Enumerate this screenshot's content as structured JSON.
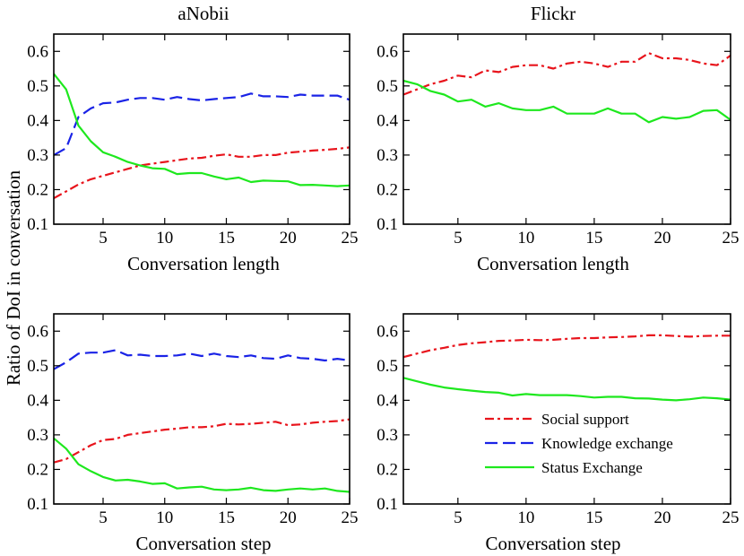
{
  "figure": {
    "ylabel": "Ratio of DoI in conversation",
    "legend": {
      "placement": "lower-right of bottom-right panel",
      "entries": [
        "Social support",
        "Knowledge exchange",
        "Status Exchange"
      ]
    },
    "colors": {
      "social_support": "#e8141c",
      "knowledge_exchange": "#1a23e6",
      "status_exchange": "#1ee81e"
    }
  },
  "chart_data": [
    {
      "type": "line",
      "title": "aNobii",
      "xlabel": "Conversation length",
      "ylabel": "Ratio of DoI in conversation",
      "xlim": [
        1,
        25
      ],
      "ylim": [
        0.1,
        0.65
      ],
      "xticks": [
        5,
        10,
        15,
        20,
        25
      ],
      "yticks": [
        0.1,
        0.2,
        0.3,
        0.4,
        0.5,
        0.6
      ],
      "x": [
        1,
        2,
        3,
        4,
        5,
        6,
        7,
        8,
        9,
        10,
        11,
        12,
        13,
        14,
        15,
        16,
        17,
        18,
        19,
        20,
        21,
        22,
        23,
        24,
        25
      ],
      "series": [
        {
          "name": "Social support",
          "key": "social_support",
          "style": "dashdot",
          "values": [
            0.175,
            0.195,
            0.215,
            0.23,
            0.24,
            0.25,
            0.26,
            0.27,
            0.275,
            0.28,
            0.285,
            0.29,
            0.292,
            0.298,
            0.302,
            0.295,
            0.295,
            0.3,
            0.3,
            0.307,
            0.31,
            0.313,
            0.315,
            0.318,
            0.322
          ]
        },
        {
          "name": "Knowledge exchange",
          "key": "knowledge_exchange",
          "style": "dashed",
          "values": [
            0.3,
            0.32,
            0.41,
            0.435,
            0.45,
            0.452,
            0.46,
            0.465,
            0.465,
            0.46,
            0.468,
            0.462,
            0.458,
            0.462,
            0.465,
            0.468,
            0.478,
            0.47,
            0.47,
            0.468,
            0.475,
            0.472,
            0.472,
            0.472,
            0.46
          ]
        },
        {
          "name": "Status Exchange",
          "key": "status_exchange",
          "style": "solid",
          "values": [
            0.535,
            0.49,
            0.385,
            0.34,
            0.308,
            0.295,
            0.28,
            0.27,
            0.262,
            0.26,
            0.245,
            0.248,
            0.248,
            0.238,
            0.23,
            0.235,
            0.222,
            0.226,
            0.225,
            0.224,
            0.213,
            0.214,
            0.212,
            0.21,
            0.212
          ]
        }
      ]
    },
    {
      "type": "line",
      "title": "Flickr",
      "xlabel": "Conversation length",
      "ylabel": "",
      "xlim": [
        1,
        25
      ],
      "ylim": [
        0.1,
        0.65
      ],
      "xticks": [
        5,
        10,
        15,
        20,
        25
      ],
      "yticks": [
        0.1,
        0.2,
        0.3,
        0.4,
        0.5,
        0.6
      ],
      "x": [
        1,
        2,
        3,
        4,
        5,
        6,
        7,
        8,
        9,
        10,
        11,
        12,
        13,
        14,
        15,
        16,
        17,
        18,
        19,
        20,
        21,
        22,
        23,
        24,
        25
      ],
      "series": [
        {
          "name": "Social support",
          "key": "social_support",
          "style": "dashdot",
          "values": [
            0.475,
            0.49,
            0.505,
            0.515,
            0.53,
            0.525,
            0.545,
            0.54,
            0.555,
            0.56,
            0.56,
            0.55,
            0.565,
            0.57,
            0.565,
            0.555,
            0.57,
            0.57,
            0.595,
            0.58,
            0.58,
            0.575,
            0.565,
            0.56,
            0.588
          ]
        },
        {
          "name": "Status Exchange",
          "key": "status_exchange",
          "style": "solid",
          "values": [
            0.515,
            0.505,
            0.485,
            0.475,
            0.455,
            0.46,
            0.44,
            0.45,
            0.435,
            0.43,
            0.43,
            0.44,
            0.42,
            0.42,
            0.42,
            0.435,
            0.42,
            0.42,
            0.395,
            0.41,
            0.405,
            0.41,
            0.428,
            0.43,
            0.402
          ]
        }
      ]
    },
    {
      "type": "line",
      "title": "",
      "xlabel": "Conversation step",
      "ylabel": "Ratio of DoI in conversation",
      "xlim": [
        1,
        25
      ],
      "ylim": [
        0.1,
        0.65
      ],
      "xticks": [
        5,
        10,
        15,
        20,
        25
      ],
      "yticks": [
        0.1,
        0.2,
        0.3,
        0.4,
        0.5,
        0.6
      ],
      "x": [
        1,
        2,
        3,
        4,
        5,
        6,
        7,
        8,
        9,
        10,
        11,
        12,
        13,
        14,
        15,
        16,
        17,
        18,
        19,
        20,
        21,
        22,
        23,
        24,
        25
      ],
      "series": [
        {
          "name": "Social support",
          "key": "social_support",
          "style": "dashdot",
          "values": [
            0.22,
            0.23,
            0.25,
            0.27,
            0.285,
            0.288,
            0.3,
            0.305,
            0.31,
            0.315,
            0.318,
            0.322,
            0.322,
            0.325,
            0.332,
            0.33,
            0.332,
            0.335,
            0.338,
            0.328,
            0.33,
            0.335,
            0.338,
            0.34,
            0.345
          ]
        },
        {
          "name": "Knowledge exchange",
          "key": "knowledge_exchange",
          "style": "dashed",
          "values": [
            0.49,
            0.51,
            0.535,
            0.538,
            0.538,
            0.545,
            0.53,
            0.532,
            0.528,
            0.528,
            0.53,
            0.535,
            0.528,
            0.535,
            0.528,
            0.525,
            0.53,
            0.522,
            0.52,
            0.53,
            0.522,
            0.52,
            0.515,
            0.52,
            0.515
          ]
        },
        {
          "name": "Status Exchange",
          "key": "status_exchange",
          "style": "solid",
          "values": [
            0.29,
            0.26,
            0.215,
            0.195,
            0.178,
            0.168,
            0.17,
            0.165,
            0.158,
            0.16,
            0.145,
            0.148,
            0.15,
            0.142,
            0.14,
            0.142,
            0.147,
            0.14,
            0.138,
            0.142,
            0.145,
            0.142,
            0.145,
            0.138,
            0.135
          ]
        }
      ]
    },
    {
      "type": "line",
      "title": "",
      "xlabel": "Conversation step",
      "ylabel": "",
      "xlim": [
        1,
        25
      ],
      "ylim": [
        0.1,
        0.65
      ],
      "xticks": [
        5,
        10,
        15,
        20,
        25
      ],
      "yticks": [
        0.1,
        0.2,
        0.3,
        0.4,
        0.5,
        0.6
      ],
      "x": [
        1,
        2,
        3,
        4,
        5,
        6,
        7,
        8,
        9,
        10,
        11,
        12,
        13,
        14,
        15,
        16,
        17,
        18,
        19,
        20,
        21,
        22,
        23,
        24,
        25
      ],
      "series": [
        {
          "name": "Social support",
          "key": "social_support",
          "style": "dashdot",
          "values": [
            0.525,
            0.535,
            0.545,
            0.552,
            0.56,
            0.565,
            0.568,
            0.572,
            0.573,
            0.575,
            0.574,
            0.575,
            0.578,
            0.58,
            0.58,
            0.582,
            0.583,
            0.585,
            0.588,
            0.588,
            0.586,
            0.584,
            0.586,
            0.587,
            0.587
          ]
        },
        {
          "name": "Status Exchange",
          "key": "status_exchange",
          "style": "solid",
          "values": [
            0.465,
            0.455,
            0.445,
            0.437,
            0.432,
            0.428,
            0.424,
            0.422,
            0.414,
            0.418,
            0.415,
            0.415,
            0.415,
            0.412,
            0.408,
            0.41,
            0.41,
            0.406,
            0.405,
            0.402,
            0.4,
            0.403,
            0.408,
            0.406,
            0.402
          ]
        }
      ]
    }
  ]
}
